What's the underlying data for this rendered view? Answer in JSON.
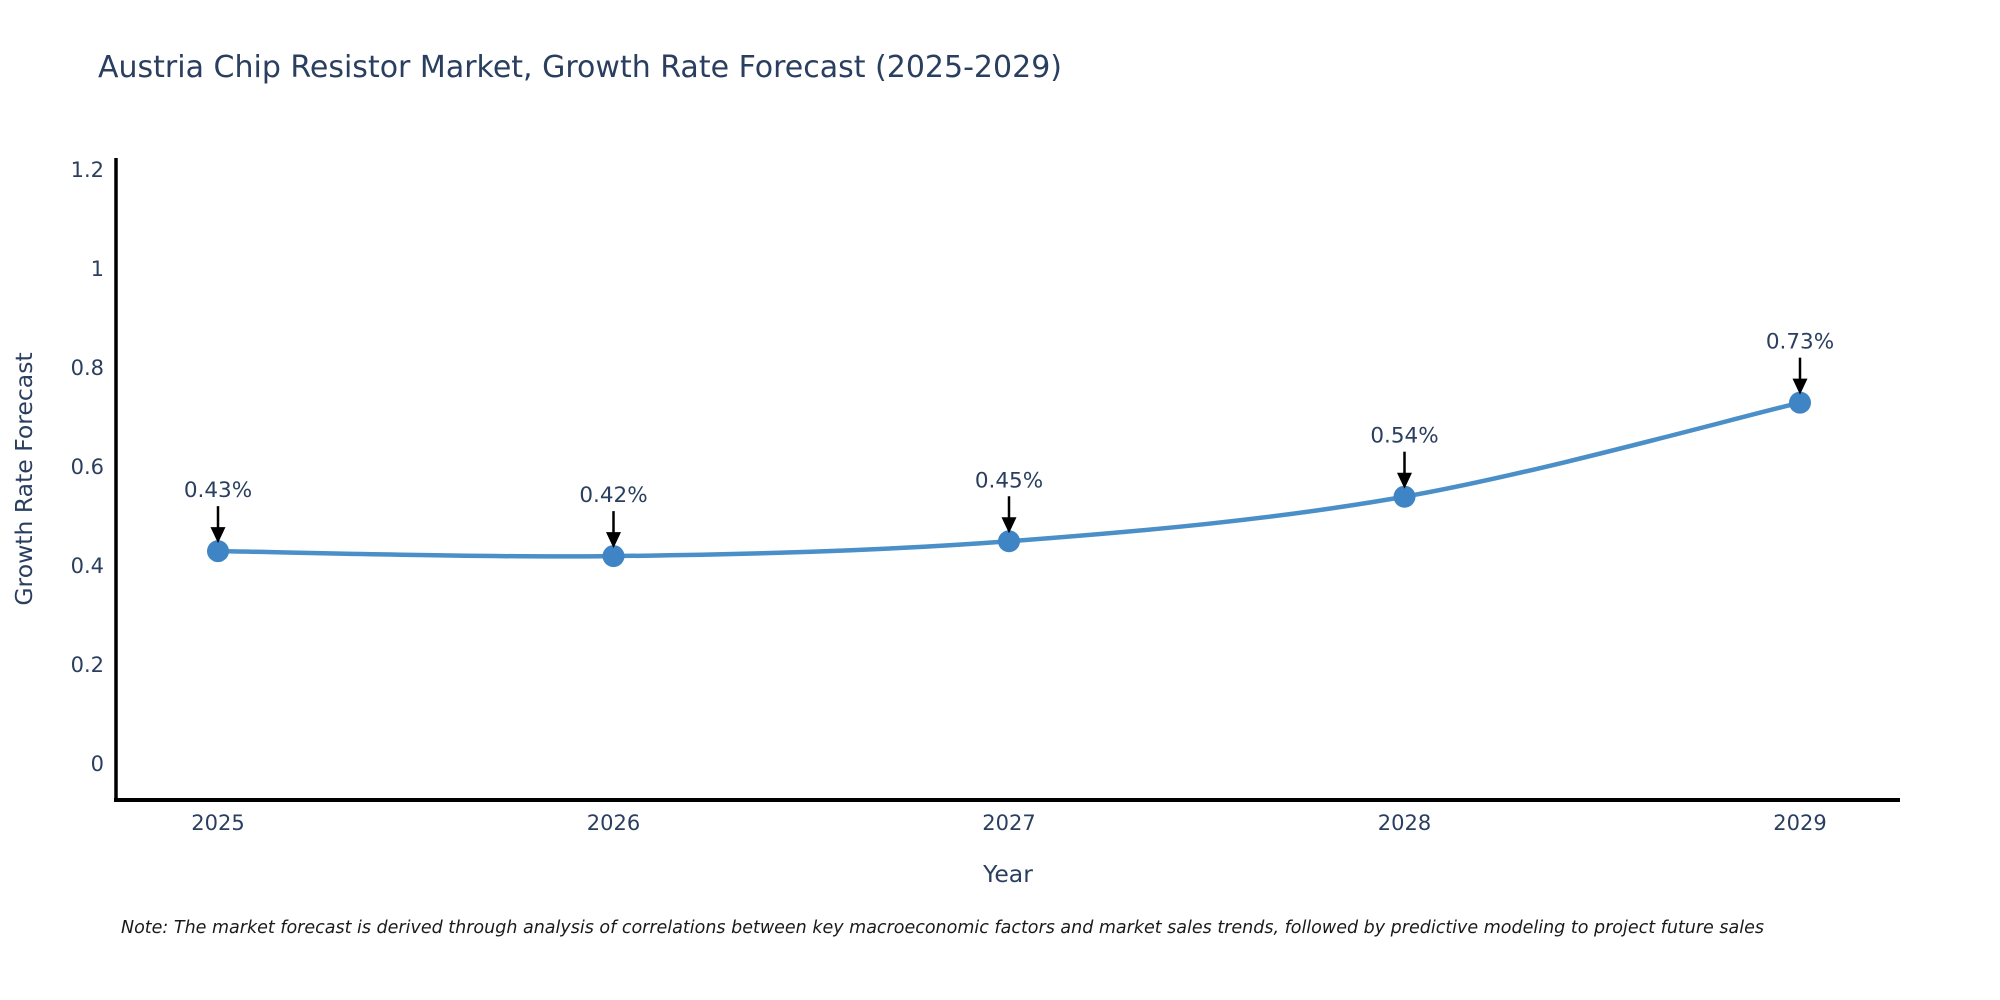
{
  "chart_data": {
    "type": "line",
    "title": "Austria Chip Resistor Market, Growth Rate Forecast (2025-2029)",
    "xlabel": "Year",
    "ylabel": "Growth Rate Forecast",
    "x": [
      2025,
      2026,
      2027,
      2028,
      2029
    ],
    "values": [
      0.43,
      0.42,
      0.45,
      0.54,
      0.73
    ],
    "point_labels": [
      "0.43%",
      "0.42%",
      "0.45%",
      "0.54%",
      "0.73%"
    ],
    "ytick_values": [
      0,
      0.2,
      0.4,
      0.6,
      0.8,
      1,
      1.2
    ],
    "ytick_labels": [
      "0",
      "0.2",
      "0.4",
      "0.6",
      "0.8",
      "1",
      "1.2"
    ],
    "ylim": [
      0,
      1.2
    ],
    "grid": false,
    "legend_position": "none",
    "line_color": "#4a8fc7",
    "marker_color": "#3f84c4",
    "arrow_color": "#000000",
    "axis_color": "#000000",
    "text_color": "#2a3f5f"
  },
  "note": "Note: The market forecast is derived through analysis of correlations between key macroeconomic factors and market sales trends, followed by predictive modeling to project future sales"
}
